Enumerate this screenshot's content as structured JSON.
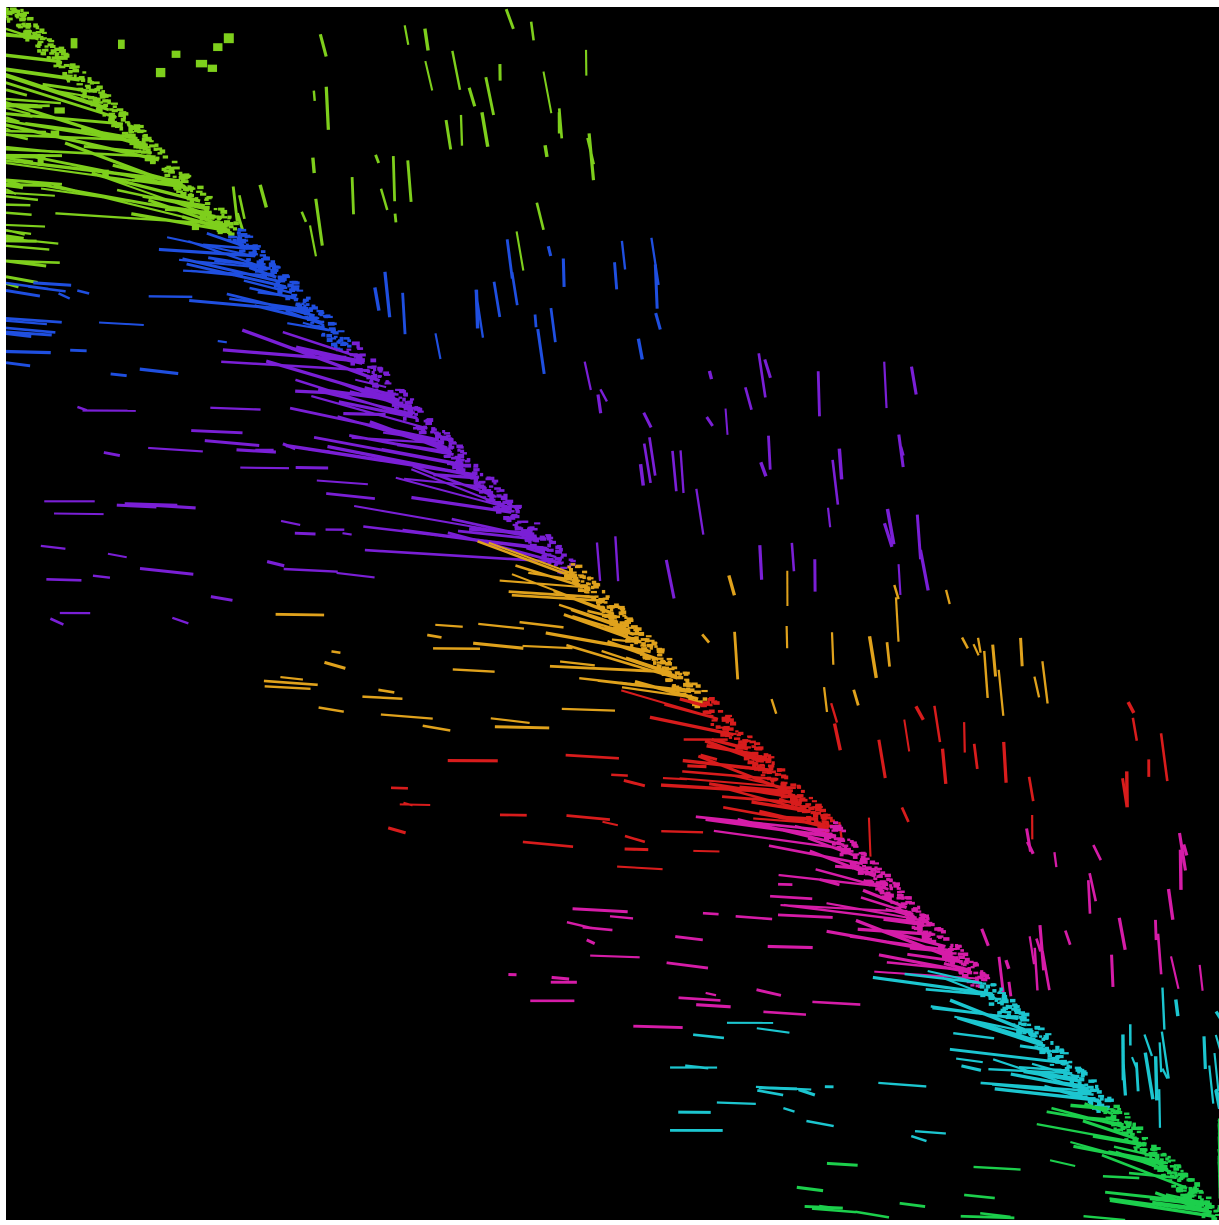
{
  "visualization": {
    "kind": "sparse-matrix-pattern",
    "background_color": "#000000",
    "frame_color": "#ffffff",
    "block_order": [
      "green-1",
      "blue",
      "purple",
      "orange",
      "red",
      "magenta",
      "cyan",
      "green-2"
    ],
    "blocks": [
      {
        "id": "green-1",
        "color": "#7ecf1c"
      },
      {
        "id": "blue",
        "color": "#1f4fe0"
      },
      {
        "id": "purple",
        "color": "#7a1fd6"
      },
      {
        "id": "orange",
        "color": "#e0a21c"
      },
      {
        "id": "red",
        "color": "#d81c1c"
      },
      {
        "id": "magenta",
        "color": "#d61ca8"
      },
      {
        "id": "cyan",
        "color": "#1cc6d0"
      },
      {
        "id": "green-2",
        "color": "#1ccf4c"
      }
    ]
  }
}
